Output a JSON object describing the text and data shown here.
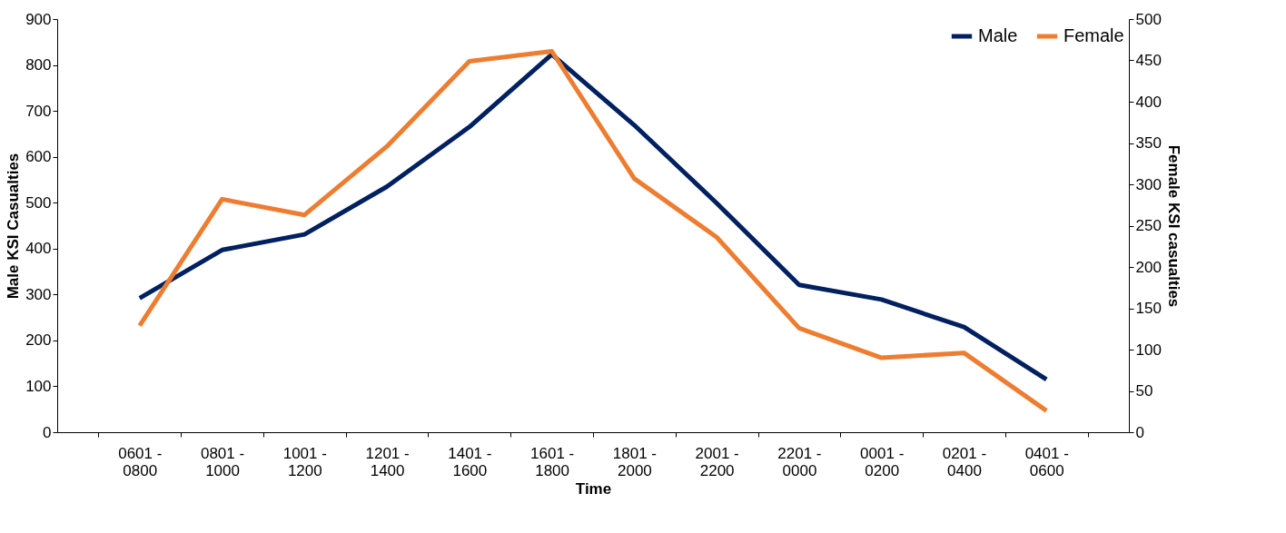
{
  "chart_data": {
    "type": "line",
    "xlabel": "Time",
    "ylabel": "Male KSI Casualties",
    "y2label": "Female KSI casualties",
    "categories": [
      "0601 - 0800",
      "0801 - 1000",
      "1001 - 1200",
      "1201 - 1400",
      "1401 - 1600",
      "1601 - 1800",
      "1801 - 2000",
      "2001 - 2200",
      "2201 - 0000",
      "0001 - 0200",
      "0201 - 0400",
      "0401 - 0600"
    ],
    "series": [
      {
        "name": "Male",
        "color": "#002060",
        "values": [
          292,
          397,
          431,
          535,
          665,
          823,
          669,
          499,
          321,
          289,
          229,
          115
        ]
      },
      {
        "name": "Female",
        "color": "#ed7d31",
        "axis": "y2",
        "values": [
          129,
          282,
          263,
          346,
          449,
          461,
          307,
          236,
          126,
          90,
          96,
          26
        ]
      }
    ],
    "ylim": [
      0,
      900
    ],
    "yticks": [
      0,
      100,
      200,
      300,
      400,
      500,
      600,
      700,
      800,
      900
    ],
    "y2lim": [
      0,
      500
    ],
    "y2ticks": [
      0,
      50,
      100,
      150,
      200,
      250,
      300,
      350,
      400,
      450,
      500
    ],
    "grid": false,
    "legend": "top right",
    "marker": "none",
    "line_style": "solid"
  }
}
